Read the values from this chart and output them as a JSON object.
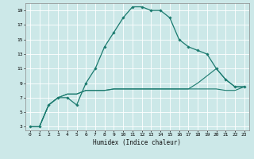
{
  "title": "",
  "xlabel": "Humidex (Indice chaleur)",
  "bg_color": "#cce8e8",
  "grid_color": "#ffffff",
  "line_color": "#1a7a6e",
  "xlim": [
    -0.5,
    23.5
  ],
  "ylim": [
    2.5,
    20
  ],
  "yticks": [
    3,
    5,
    7,
    9,
    11,
    13,
    15,
    17,
    19
  ],
  "xticks": [
    0,
    1,
    2,
    3,
    4,
    5,
    6,
    7,
    8,
    9,
    10,
    11,
    12,
    13,
    14,
    15,
    16,
    17,
    18,
    19,
    20,
    21,
    22,
    23
  ],
  "series": [
    {
      "x": [
        0,
        1,
        2,
        3,
        4,
        5,
        6,
        7,
        8,
        9,
        10,
        11,
        12,
        13,
        14,
        15,
        16,
        17,
        18,
        19,
        20,
        21,
        22,
        23
      ],
      "y": [
        3,
        3,
        6,
        7,
        7.5,
        7.5,
        8,
        8,
        8,
        8.2,
        8.2,
        8.2,
        8.2,
        8.2,
        8.2,
        8.2,
        8.2,
        8.2,
        8.2,
        8.2,
        8.2,
        8.0,
        8.0,
        8.5
      ],
      "marker": false,
      "linewidth": 0.8
    },
    {
      "x": [
        0,
        1,
        2,
        3,
        4,
        5,
        6,
        7,
        8,
        9,
        10,
        11,
        12,
        13,
        14,
        15,
        16,
        17,
        18,
        19,
        20,
        21,
        22,
        23
      ],
      "y": [
        3,
        3,
        6,
        7,
        7.5,
        7.5,
        8,
        8,
        8,
        8.2,
        8.2,
        8.2,
        8.2,
        8.2,
        8.2,
        8.2,
        8.2,
        8.2,
        9,
        10,
        11,
        9.5,
        8.5,
        8.5
      ],
      "marker": false,
      "linewidth": 0.8
    },
    {
      "x": [
        0,
        1,
        2,
        3,
        4,
        5,
        6,
        7,
        8,
        9,
        10,
        11,
        12,
        13,
        14,
        15,
        16,
        17,
        18,
        19,
        20,
        21,
        22,
        23
      ],
      "y": [
        3,
        3,
        6,
        7,
        7,
        6,
        9,
        11,
        14,
        16,
        18,
        19.5,
        19.5,
        19,
        19,
        18,
        15,
        14,
        13.5,
        13,
        11,
        9.5,
        8.5,
        8.5
      ],
      "marker": true,
      "linewidth": 0.9
    }
  ]
}
